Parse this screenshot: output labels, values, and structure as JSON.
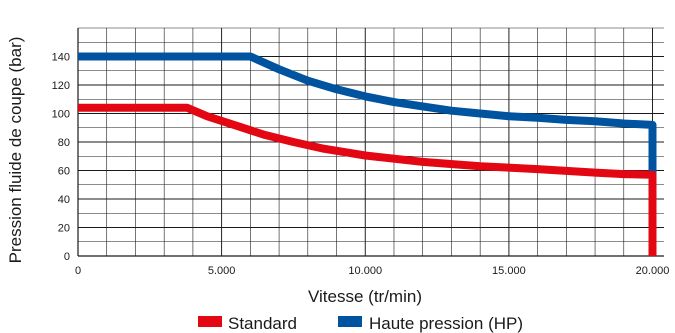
{
  "chart_data": {
    "type": "line",
    "xlabel": "Vitesse (tr/min)",
    "ylabel": "Pression fluide de coupe (bar)",
    "xlim": [
      0,
      20400
    ],
    "ylim": [
      0,
      160
    ],
    "x_ticks": [
      {
        "value": 0,
        "label": "0"
      },
      {
        "value": 5000,
        "label": "5.000"
      },
      {
        "value": 10000,
        "label": "10.000"
      },
      {
        "value": 15000,
        "label": "15.000"
      },
      {
        "value": 20000,
        "label": "20.000"
      }
    ],
    "y_ticks": [
      {
        "value": 0,
        "label": "0"
      },
      {
        "value": 20,
        "label": "20"
      },
      {
        "value": 40,
        "label": "40"
      },
      {
        "value": 60,
        "label": "60"
      },
      {
        "value": 80,
        "label": "80"
      },
      {
        "value": 100,
        "label": "100"
      },
      {
        "value": 120,
        "label": "120"
      },
      {
        "value": 140,
        "label": "140"
      }
    ],
    "x_minor_step": 1000,
    "y_minor_step": 10,
    "grid": true,
    "legend_position": "bottom",
    "series": [
      {
        "name": "Standard",
        "color": "#e30613",
        "x": [
          0,
          3800,
          4500,
          5500,
          6500,
          7500,
          8500,
          10000,
          12000,
          14000,
          16000,
          18000,
          19000,
          20000,
          20000
        ],
        "y": [
          104,
          104,
          98,
          91.5,
          85,
          80,
          75.5,
          70.5,
          66,
          63,
          61,
          58.5,
          57.5,
          57,
          0
        ]
      },
      {
        "name": "Haute pression (HP)",
        "color": "#00549f",
        "x": [
          0,
          6000,
          7000,
          8000,
          9000,
          10000,
          11000,
          12000,
          13000,
          14000,
          15000,
          16000,
          17000,
          18000,
          19000,
          20000,
          20000
        ],
        "y": [
          140,
          140,
          131,
          123,
          117,
          112,
          108,
          105,
          102,
          100,
          98,
          97,
          95.5,
          94.5,
          93,
          92,
          57
        ]
      }
    ]
  }
}
